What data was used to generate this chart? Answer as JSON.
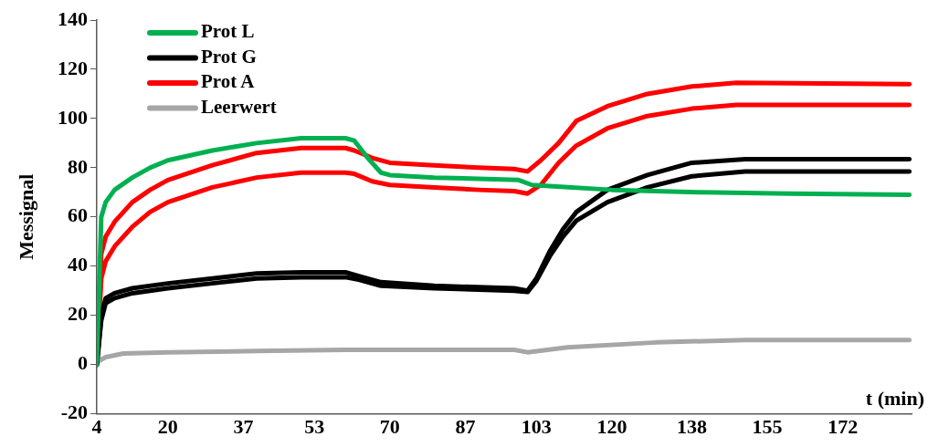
{
  "chart_data": {
    "type": "line",
    "xlabel": "t (min)",
    "ylabel": "Messignal",
    "legend": "top left",
    "grid": false,
    "marker": "none",
    "line_style": "solid",
    "xlim": [
      4,
      187.5
    ],
    "xticks": [
      4,
      20,
      37,
      53,
      70,
      87,
      103,
      120,
      138,
      155,
      172
    ],
    "ylim": [
      -20,
      140
    ],
    "yticks": [
      -20,
      0,
      20,
      40,
      60,
      80,
      100,
      120,
      140
    ],
    "series": [
      {
        "name": "Prot L",
        "color": "#00b050",
        "x": [
          4,
          5,
          6,
          8,
          12,
          16,
          20,
          30,
          40,
          50,
          60,
          62,
          65,
          68,
          70,
          80,
          90,
          99,
          102,
          106,
          120,
          140,
          160,
          187
        ],
        "values": [
          0,
          60,
          66,
          71,
          76,
          80,
          83,
          87,
          90,
          92,
          92,
          91,
          84,
          78,
          77,
          76,
          75.5,
          75,
          73,
          72.5,
          71,
          70,
          69.5,
          69
        ]
      },
      {
        "name": "Prot G",
        "color": "#000000",
        "x": [
          4,
          5,
          6,
          8,
          12,
          20,
          30,
          40,
          50,
          60,
          63,
          68,
          80,
          98,
          101,
          103,
          106,
          109,
          112,
          119,
          128,
          138,
          150,
          187
        ],
        "values": [
          0,
          20,
          27,
          29,
          31,
          33,
          35,
          37,
          37.5,
          37.5,
          36,
          33.5,
          32,
          31,
          30,
          35,
          46,
          55,
          62,
          71,
          77,
          82,
          83.5,
          83.5
        ]
      },
      {
        "color": "#000000",
        "x": [
          4,
          5,
          6,
          8,
          12,
          20,
          30,
          40,
          50,
          60,
          63,
          68,
          80,
          98,
          101,
          103,
          106,
          109,
          112,
          119,
          128,
          138,
          150,
          187
        ],
        "values": [
          0,
          18,
          25,
          27,
          29,
          31,
          33,
          35,
          35.5,
          35.5,
          34.5,
          32,
          31,
          30,
          29.5,
          34,
          44,
          52,
          58.5,
          66,
          72,
          76.5,
          78.5,
          78.5
        ]
      },
      {
        "name": "Prot A",
        "color": "#ff0000",
        "x": [
          4,
          5,
          6,
          8,
          12,
          16,
          20,
          30,
          40,
          50,
          60,
          62,
          66,
          70,
          80,
          90,
          98,
          101,
          104,
          108,
          112,
          119,
          128,
          138,
          148,
          187
        ],
        "values": [
          0,
          45,
          52,
          58,
          66,
          71,
          75,
          81,
          86,
          88,
          88,
          87,
          84,
          82,
          81,
          80,
          79.5,
          78.5,
          83,
          90,
          99,
          105,
          110,
          113,
          114.5,
          114
        ]
      },
      {
        "color": "#ff0000",
        "x": [
          4,
          5,
          6,
          8,
          12,
          16,
          20,
          30,
          40,
          50,
          60,
          62,
          66,
          70,
          80,
          90,
          98,
          101,
          104,
          108,
          112,
          119,
          128,
          138,
          148,
          187
        ],
        "values": [
          0,
          35,
          42,
          48,
          56,
          62,
          66,
          72,
          76,
          78,
          78,
          77.5,
          74.5,
          73,
          72,
          71,
          70.5,
          69.5,
          73,
          82,
          89,
          96,
          101,
          104,
          105.5,
          105.5
        ]
      },
      {
        "name": "Leerwert",
        "color": "#a6a6a6",
        "x": [
          4,
          6,
          10,
          20,
          40,
          60,
          80,
          98,
          101,
          110,
          130,
          150,
          187
        ],
        "values": [
          1,
          3,
          4.5,
          5,
          5.5,
          6,
          6,
          6,
          5,
          7,
          9,
          10,
          10
        ]
      }
    ]
  }
}
